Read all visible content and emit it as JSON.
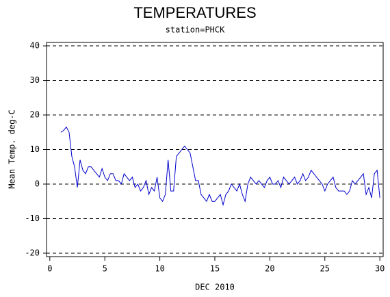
{
  "chart_data": {
    "type": "line",
    "title": "TEMPERATURES",
    "subtitle": "station=PHCK",
    "x_label": "DEC 2010",
    "y_label": "Mean Temp. deg-C",
    "xlim": [
      -0.3,
      30.3
    ],
    "xticks": [
      0,
      5,
      10,
      15,
      20,
      25,
      30
    ],
    "ylim": [
      -21,
      41
    ],
    "yticks": [
      -20,
      -10,
      0,
      10,
      20,
      30,
      40
    ],
    "grid": true,
    "x": [
      1.0,
      1.25,
      1.5,
      1.75,
      2.0,
      2.25,
      2.5,
      2.75,
      3.0,
      3.25,
      3.5,
      3.75,
      4.0,
      4.25,
      4.5,
      4.75,
      5.0,
      5.25,
      5.5,
      5.75,
      6.0,
      6.25,
      6.5,
      6.75,
      7.0,
      7.25,
      7.5,
      7.75,
      8.0,
      8.25,
      8.5,
      8.75,
      9.0,
      9.25,
      9.5,
      9.75,
      10.0,
      10.25,
      10.5,
      10.75,
      11.0,
      11.25,
      11.5,
      11.75,
      12.0,
      12.25,
      12.5,
      12.75,
      13.0,
      13.25,
      13.5,
      13.75,
      14.0,
      14.25,
      14.5,
      14.75,
      15.0,
      15.25,
      15.5,
      15.75,
      16.0,
      16.25,
      16.5,
      16.75,
      17.0,
      17.25,
      17.5,
      17.75,
      18.0,
      18.25,
      18.5,
      18.75,
      19.0,
      19.25,
      19.5,
      19.75,
      20.0,
      20.25,
      20.5,
      20.75,
      21.0,
      21.25,
      21.5,
      21.75,
      22.0,
      22.25,
      22.5,
      22.75,
      23.0,
      23.25,
      23.5,
      23.75,
      24.0,
      24.25,
      24.5,
      24.75,
      25.0,
      25.25,
      25.5,
      25.75,
      26.0,
      26.25,
      26.5,
      26.75,
      27.0,
      27.25,
      27.5,
      27.75,
      28.0,
      28.25,
      28.5,
      28.75,
      29.0,
      29.25,
      29.5,
      29.75,
      30.0
    ],
    "series": [
      {
        "color": "#0000cc",
        "values": [
          15,
          15.5,
          16.5,
          15,
          8,
          5,
          -1,
          7,
          4,
          3,
          5,
          5,
          4,
          3,
          2,
          4.5,
          2,
          1,
          3,
          3,
          1,
          1,
          0,
          3,
          2,
          1,
          2,
          -1,
          0,
          -2,
          -1,
          1,
          -3,
          -1,
          -2,
          2,
          -4,
          -5,
          -3,
          7,
          -2,
          -2,
          8,
          9,
          10,
          11,
          10,
          9,
          5,
          1,
          1,
          -3,
          -4,
          -5,
          -3,
          -5,
          -5,
          -4,
          -3,
          -6,
          -3,
          -2,
          0,
          -1,
          -2,
          0,
          -3,
          -5,
          0,
          2,
          1,
          0,
          1,
          0,
          -1,
          1,
          2,
          0,
          0,
          1,
          -1,
          2,
          1,
          0,
          1,
          2,
          0,
          1,
          3,
          1,
          2,
          4,
          3,
          2,
          1,
          0,
          -2,
          0,
          1,
          2,
          -1,
          -2,
          -2,
          -2,
          -3,
          -2,
          1,
          0,
          1,
          2,
          3,
          -3,
          -1,
          -4,
          3,
          4,
          -4
        ]
      }
    ]
  }
}
